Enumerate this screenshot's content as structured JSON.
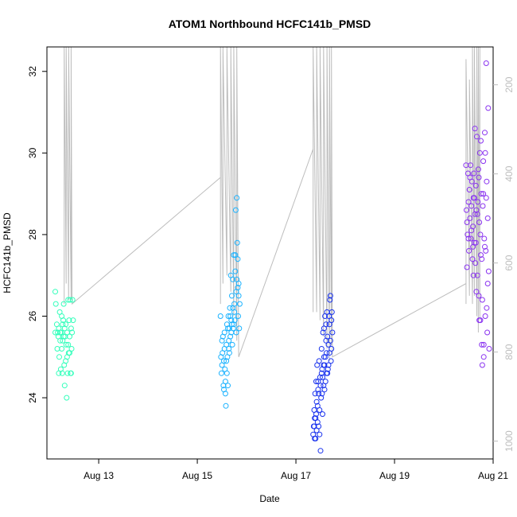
{
  "chart_data": {
    "type": "scatter",
    "title": "ATOM1 Northbound HCFC141b_PMSD",
    "xlabel": "Date",
    "ylabel": "HCFC141b_PMSD",
    "x_tick_labels": [
      "Aug 13",
      "Aug 15",
      "Aug 17",
      "Aug 19",
      "Aug 21"
    ],
    "x_tick_days": [
      13,
      15,
      17,
      19,
      21
    ],
    "xlim_days": [
      11.95,
      21.0
    ],
    "y_ticks": [
      24,
      26,
      28,
      30,
      32
    ],
    "ylim": [
      22.5,
      32.6
    ],
    "y2_ticks": [
      200,
      400,
      600,
      800,
      1000
    ],
    "y2lim": [
      1040,
      115
    ],
    "grid": false,
    "legend": "none",
    "colors": {
      "group1": "#33ffbb",
      "group2": "#1ab2ff",
      "group3": "#1a33ee",
      "group4": "#8a33f0",
      "line": "#bdbdbd",
      "axis": "#000000",
      "axis_right": "#bdbdbd"
    },
    "series": [
      {
        "points": [
          [
            12.12,
            26.6
          ],
          [
            12.13,
            26.3
          ],
          [
            12.15,
            25.8
          ],
          [
            12.17,
            25.6
          ],
          [
            12.18,
            25.5
          ],
          [
            12.19,
            25.7
          ],
          [
            12.2,
            25.0
          ],
          [
            12.21,
            26.1
          ],
          [
            12.22,
            25.4
          ],
          [
            12.23,
            24.7
          ],
          [
            12.24,
            25.6
          ],
          [
            12.25,
            25.2
          ],
          [
            12.26,
            24.6
          ],
          [
            12.27,
            25.8
          ],
          [
            12.28,
            25.9
          ],
          [
            12.29,
            26.3
          ],
          [
            12.3,
            24.8
          ],
          [
            12.31,
            24.3
          ],
          [
            12.32,
            25.5
          ],
          [
            12.33,
            25.8
          ],
          [
            12.34,
            25.3
          ],
          [
            12.35,
            24.0
          ],
          [
            12.36,
            25.6
          ],
          [
            12.37,
            24.6
          ],
          [
            12.38,
            26.4
          ],
          [
            12.39,
            25.1
          ],
          [
            12.4,
            25.9
          ],
          [
            12.41,
            25.5
          ],
          [
            12.42,
            26.4
          ],
          [
            12.43,
            24.6
          ],
          [
            12.44,
            25.7
          ],
          [
            12.45,
            25.2
          ],
          [
            12.46,
            25.6
          ],
          [
            12.47,
            26.4
          ],
          [
            12.48,
            25.9
          ],
          [
            12.16,
            25.2
          ],
          [
            12.19,
            24.6
          ],
          [
            12.22,
            25.6
          ],
          [
            12.27,
            25.4
          ],
          [
            12.33,
            24.9
          ],
          [
            12.36,
            25.0
          ],
          [
            12.41,
            25.1
          ],
          [
            12.12,
            25.6
          ],
          [
            12.25,
            26.0
          ],
          [
            12.31,
            25.7
          ],
          [
            12.38,
            25.3
          ],
          [
            12.44,
            24.6
          ],
          [
            12.29,
            25.5
          ]
        ],
        "line": [
          [
            12.3,
            26.3
          ],
          [
            12.3,
            32.6
          ],
          [
            12.34,
            26.8
          ],
          [
            12.34,
            32.6
          ],
          [
            12.39,
            26.4
          ],
          [
            12.39,
            32.6
          ],
          [
            12.44,
            26.4
          ],
          [
            12.44,
            32.6
          ],
          [
            12.46,
            26.3
          ],
          [
            15.47,
            29.4
          ],
          [
            15.47,
            26.3
          ],
          [
            15.47,
            32.6
          ],
          [
            15.52,
            26.8
          ],
          [
            15.52,
            32.6
          ],
          [
            15.6,
            27.0
          ],
          [
            15.6,
            32.6
          ],
          [
            15.68,
            26.6
          ],
          [
            15.68,
            32.6
          ],
          [
            15.74,
            26.0
          ],
          [
            15.74,
            32.6
          ],
          [
            15.8,
            25.4
          ],
          [
            15.8,
            32.6
          ],
          [
            15.84,
            25.0
          ],
          [
            17.35,
            30.1
          ],
          [
            17.35,
            26.1
          ],
          [
            17.35,
            32.6
          ],
          [
            17.42,
            26.1
          ],
          [
            17.42,
            32.6
          ],
          [
            17.49,
            25.9
          ],
          [
            17.49,
            32.6
          ],
          [
            17.56,
            25.5
          ],
          [
            17.56,
            32.6
          ],
          [
            17.63,
            25.2
          ],
          [
            17.63,
            32.6
          ],
          [
            17.68,
            24.9
          ],
          [
            17.68,
            32.6
          ],
          [
            17.72,
            25.3
          ],
          [
            17.72,
            32.6
          ],
          [
            17.74,
            25.0
          ],
          [
            20.45,
            26.8
          ],
          [
            20.45,
            26.3
          ],
          [
            20.45,
            32.3
          ],
          [
            20.52,
            26.5
          ],
          [
            20.52,
            31.8
          ],
          [
            20.58,
            26.3
          ],
          [
            20.58,
            32.6
          ],
          [
            20.62,
            26.5
          ],
          [
            20.62,
            32.6
          ],
          [
            20.67,
            26.0
          ],
          [
            20.67,
            32.6
          ],
          [
            20.7,
            25.6
          ],
          [
            20.7,
            32.6
          ],
          [
            20.73,
            25.9
          ],
          [
            20.73,
            32.6
          ]
        ]
      },
      {
        "points": [
          [
            15.47,
            26.0
          ],
          [
            15.48,
            25.0
          ],
          [
            15.49,
            24.6
          ],
          [
            15.5,
            24.8
          ],
          [
            15.51,
            25.1
          ],
          [
            15.52,
            25.5
          ],
          [
            15.53,
            24.3
          ],
          [
            15.54,
            24.9
          ],
          [
            15.55,
            25.6
          ],
          [
            15.56,
            24.7
          ],
          [
            15.57,
            24.1
          ],
          [
            15.58,
            23.8
          ],
          [
            15.59,
            25.3
          ],
          [
            15.6,
            25.8
          ],
          [
            15.61,
            25.0
          ],
          [
            15.62,
            24.3
          ],
          [
            15.63,
            26.0
          ],
          [
            15.64,
            25.2
          ],
          [
            15.65,
            25.7
          ],
          [
            15.66,
            26.2
          ],
          [
            15.67,
            25.5
          ],
          [
            15.68,
            27.0
          ],
          [
            15.69,
            25.9
          ],
          [
            15.7,
            26.5
          ],
          [
            15.71,
            25.3
          ],
          [
            15.72,
            26.2
          ],
          [
            15.73,
            25.7
          ],
          [
            15.74,
            27.5
          ],
          [
            15.75,
            26.3
          ],
          [
            15.76,
            25.9
          ],
          [
            15.77,
            27.5
          ],
          [
            15.78,
            28.6
          ],
          [
            15.79,
            26.6
          ],
          [
            15.8,
            28.9
          ],
          [
            15.81,
            27.8
          ],
          [
            15.82,
            27.4
          ],
          [
            15.83,
            26.0
          ],
          [
            15.84,
            26.8
          ],
          [
            15.85,
            25.7
          ],
          [
            15.86,
            26.3
          ],
          [
            15.5,
            25.4
          ],
          [
            15.55,
            25.2
          ],
          [
            15.6,
            24.6
          ],
          [
            15.65,
            25.1
          ],
          [
            15.7,
            25.8
          ],
          [
            15.75,
            26.1
          ],
          [
            15.8,
            26.9
          ],
          [
            15.57,
            24.4
          ],
          [
            15.62,
            25.7
          ],
          [
            15.67,
            26.0
          ],
          [
            15.72,
            26.9
          ],
          [
            15.77,
            27.1
          ],
          [
            15.82,
            26.7
          ],
          [
            15.54,
            24.2
          ],
          [
            15.59,
            24.9
          ],
          [
            15.64,
            25.4
          ],
          [
            15.69,
            25.6
          ],
          [
            15.74,
            25.8
          ],
          [
            15.79,
            25.6
          ],
          [
            15.84,
            26.5
          ]
        ]
      },
      {
        "points": [
          [
            17.35,
            23.1
          ],
          [
            17.36,
            23.3
          ],
          [
            17.37,
            23.7
          ],
          [
            17.38,
            23.0
          ],
          [
            17.39,
            24.1
          ],
          [
            17.4,
            23.5
          ],
          [
            17.41,
            24.4
          ],
          [
            17.42,
            23.2
          ],
          [
            17.43,
            24.8
          ],
          [
            17.44,
            23.8
          ],
          [
            17.45,
            24.2
          ],
          [
            17.46,
            23.3
          ],
          [
            17.47,
            24.9
          ],
          [
            17.48,
            23.1
          ],
          [
            17.49,
            24.5
          ],
          [
            17.5,
            22.7
          ],
          [
            17.51,
            24.0
          ],
          [
            17.52,
            25.2
          ],
          [
            17.53,
            24.7
          ],
          [
            17.54,
            23.6
          ],
          [
            17.55,
            25.6
          ],
          [
            17.56,
            24.3
          ],
          [
            17.57,
            25.0
          ],
          [
            17.58,
            24.8
          ],
          [
            17.59,
            26.0
          ],
          [
            17.6,
            24.4
          ],
          [
            17.61,
            25.8
          ],
          [
            17.62,
            24.6
          ],
          [
            17.63,
            26.1
          ],
          [
            17.64,
            25.5
          ],
          [
            17.65,
            24.7
          ],
          [
            17.66,
            25.3
          ],
          [
            17.67,
            26.0
          ],
          [
            17.68,
            25.8
          ],
          [
            17.69,
            26.4
          ],
          [
            17.7,
            26.5
          ],
          [
            17.71,
            24.9
          ],
          [
            17.72,
            25.2
          ],
          [
            17.73,
            26.1
          ],
          [
            17.74,
            25.6
          ],
          [
            17.38,
            23.5
          ],
          [
            17.42,
            23.9
          ],
          [
            17.46,
            24.1
          ],
          [
            17.5,
            24.3
          ],
          [
            17.54,
            24.5
          ],
          [
            17.58,
            24.2
          ],
          [
            17.62,
            25.1
          ],
          [
            17.66,
            24.8
          ],
          [
            17.7,
            25.4
          ],
          [
            17.4,
            23.0
          ],
          [
            17.44,
            23.4
          ],
          [
            17.48,
            23.7
          ],
          [
            17.52,
            24.6
          ],
          [
            17.56,
            24.8
          ],
          [
            17.6,
            25.0
          ],
          [
            17.64,
            24.6
          ],
          [
            17.68,
            25.1
          ],
          [
            17.72,
            25.9
          ],
          [
            17.37,
            23.3
          ],
          [
            17.41,
            23.6
          ],
          [
            17.45,
            24.4
          ],
          [
            17.53,
            24.1
          ],
          [
            17.57,
            25.7
          ],
          [
            17.61,
            25.4
          ]
        ]
      },
      {
        "points": [
          [
            20.45,
            29.7
          ],
          [
            20.46,
            28.6
          ],
          [
            20.47,
            27.2
          ],
          [
            20.48,
            28.0
          ],
          [
            20.49,
            29.5
          ],
          [
            20.5,
            28.8
          ],
          [
            20.51,
            27.6
          ],
          [
            20.52,
            29.1
          ],
          [
            20.53,
            28.4
          ],
          [
            20.54,
            29.7
          ],
          [
            20.55,
            27.9
          ],
          [
            20.56,
            28.7
          ],
          [
            20.57,
            29.3
          ],
          [
            20.58,
            27.4
          ],
          [
            20.59,
            28.2
          ],
          [
            20.6,
            28.9
          ],
          [
            20.61,
            29.5
          ],
          [
            20.62,
            27.8
          ],
          [
            20.63,
            28.5
          ],
          [
            20.64,
            27.3
          ],
          [
            20.65,
            29.2
          ],
          [
            20.66,
            28.6
          ],
          [
            20.67,
            30.4
          ],
          [
            20.68,
            27.0
          ],
          [
            20.69,
            28.8
          ],
          [
            20.7,
            29.6
          ],
          [
            20.71,
            26.5
          ],
          [
            20.72,
            28.3
          ],
          [
            20.73,
            30.0
          ],
          [
            20.74,
            25.9
          ],
          [
            20.75,
            27.5
          ],
          [
            20.76,
            29.0
          ],
          [
            20.77,
            25.3
          ],
          [
            20.78,
            26.4
          ],
          [
            20.79,
            28.7
          ],
          [
            20.8,
            29.8
          ],
          [
            20.81,
            25.0
          ],
          [
            20.82,
            27.9
          ],
          [
            20.83,
            30.5
          ],
          [
            20.84,
            26.0
          ],
          [
            20.85,
            27.6
          ],
          [
            20.86,
            32.2
          ],
          [
            20.87,
            29.3
          ],
          [
            20.88,
            25.6
          ],
          [
            20.89,
            28.4
          ],
          [
            20.9,
            31.1
          ],
          [
            20.91,
            27.1
          ],
          [
            20.92,
            25.2
          ],
          [
            20.47,
            28.3
          ],
          [
            20.5,
            27.9
          ],
          [
            20.53,
            29.4
          ],
          [
            20.56,
            28.1
          ],
          [
            20.59,
            27.7
          ],
          [
            20.62,
            28.9
          ],
          [
            20.65,
            27.8
          ],
          [
            20.68,
            28.5
          ],
          [
            20.71,
            29.4
          ],
          [
            20.74,
            28.0
          ],
          [
            20.77,
            27.4
          ],
          [
            20.8,
            29.0
          ],
          [
            20.83,
            27.7
          ],
          [
            20.86,
            28.9
          ],
          [
            20.89,
            26.8
          ],
          [
            20.63,
            30.6
          ],
          [
            20.75,
            30.3
          ],
          [
            20.81,
            25.3
          ],
          [
            20.84,
            30.0
          ],
          [
            20.6,
            27.0
          ],
          [
            20.66,
            26.6
          ],
          [
            20.72,
            25.9
          ],
          [
            20.78,
            24.8
          ],
          [
            20.87,
            26.2
          ]
        ]
      }
    ]
  }
}
